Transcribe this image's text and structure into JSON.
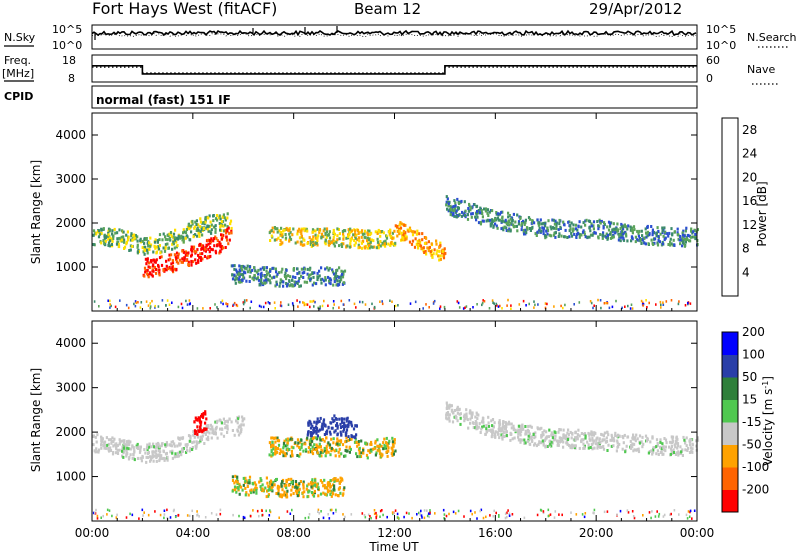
{
  "header": {
    "station": "Fort Hays West (fitACF)",
    "beam": "Beam 12",
    "date": "29/Apr/2012"
  },
  "small_panels": {
    "noise_left_label": "N.Sky",
    "noise_right_label": "N.Search",
    "noise_ticks_left": [
      "10^5",
      "10^0"
    ],
    "noise_ticks_right": [
      "10^5",
      "10^0"
    ],
    "freq_label": "Freq.",
    "freq_unit": "[MHz]",
    "freq_ticks": [
      "18",
      "8"
    ],
    "nave_label": "Nave",
    "nave_ticks": [
      "60",
      "0"
    ],
    "cpid_label": "CPID",
    "cpid_text": "normal (fast) 151 IF"
  },
  "colors": {
    "power_scale": [
      "#0000ff",
      "#2b4fd0",
      "#3b8a6a",
      "#5aa35a",
      "#ffe000",
      "#ffa200",
      "#ff6400",
      "#ff0000"
    ],
    "velocity_scale": [
      "#ff0000",
      "#ff6400",
      "#ffa200",
      "#c8c8c8",
      "#c8c8c8",
      "#50c850",
      "#2f7f3a",
      "#2a3fa8",
      "#0000ff"
    ]
  },
  "chart_data": [
    {
      "type": "line",
      "name": "noise",
      "series": [
        {
          "name": "N.Sky",
          "style": "solid"
        },
        {
          "name": "N.Search",
          "style": "dotted"
        }
      ],
      "ylog": true,
      "ylim_label": [
        "10^0",
        "10^5"
      ]
    },
    {
      "type": "line",
      "name": "frequency_nave",
      "xlim": [
        0,
        24
      ],
      "series": [
        {
          "name": "Freq.",
          "style": "solid",
          "x": [
            0,
            2,
            2,
            14,
            14,
            24
          ],
          "y": [
            14,
            14,
            11,
            11,
            14,
            14
          ]
        },
        {
          "name": "Nave",
          "style": "dotted",
          "x": [
            0,
            2,
            2,
            14,
            14,
            24
          ],
          "y": [
            33,
            33,
            20,
            20,
            33,
            33
          ]
        }
      ],
      "freq_ylim": [
        8,
        18
      ],
      "nave_ylim": [
        0,
        60
      ]
    },
    {
      "type": "heatmap",
      "name": "power",
      "xlabel": "",
      "ylabel": "Slant Range [km]",
      "xlim": [
        0,
        24
      ],
      "ylim": [
        0,
        4500
      ],
      "yticks": [
        1000,
        2000,
        3000,
        4000
      ],
      "colorbar": {
        "label": "Power [dB]",
        "ticks": [
          4,
          8,
          12,
          16,
          20,
          24,
          28
        ],
        "range": [
          0,
          30
        ]
      },
      "features": [
        {
          "desc": "E/F-region band",
          "x": [
            0,
            1,
            2,
            3,
            4,
            5,
            5.5
          ],
          "y": [
            1750,
            1700,
            1500,
            1600,
            1900,
            2050,
            2050
          ],
          "power": 14
        },
        {
          "desc": "strong near-range echo",
          "x": [
            2,
            3,
            4,
            5,
            5.5
          ],
          "y": [
            1000,
            1100,
            1300,
            1550,
            1800
          ],
          "power": 28
        },
        {
          "desc": "midday patch",
          "x": [
            7,
            8,
            9,
            10,
            11,
            12
          ],
          "y": [
            1750,
            1700,
            1700,
            1700,
            1650,
            1700
          ],
          "power": 18
        },
        {
          "desc": "descending trace",
          "x": [
            12,
            12.5,
            13,
            13.5,
            14
          ],
          "y": [
            1900,
            1750,
            1600,
            1450,
            1300
          ],
          "power": 22
        },
        {
          "desc": "evening trail",
          "x": [
            14,
            16,
            18,
            20,
            22,
            24
          ],
          "y": [
            2450,
            2100,
            1900,
            1900,
            1750,
            1700
          ],
          "power": 10
        },
        {
          "desc": "low band",
          "x": [
            5.5,
            6.5,
            7.5,
            8.5,
            10
          ],
          "y": [
            880,
            830,
            800,
            800,
            830
          ],
          "power": 8
        }
      ]
    },
    {
      "type": "heatmap",
      "name": "velocity",
      "xlabel": "Time UT",
      "ylabel": "Slant Range [km]",
      "xlim": [
        0,
        24
      ],
      "ylim": [
        0,
        4500
      ],
      "xticks": [
        "00:00",
        "04:00",
        "08:00",
        "12:00",
        "16:00",
        "20:00",
        "00:00"
      ],
      "yticks": [
        1000,
        2000,
        3000,
        4000
      ],
      "colorbar": {
        "label": "Velocity [m s^-1]",
        "ticks": [
          -200,
          -100,
          -50,
          -15,
          15,
          50,
          100,
          200
        ]
      },
      "features": [
        {
          "desc": "ground scatter band",
          "x": [
            0,
            1,
            2,
            3,
            4,
            5,
            6
          ],
          "y": [
            1800,
            1700,
            1550,
            1600,
            1850,
            2100,
            2200
          ],
          "velocity": 0
        },
        {
          "desc": "red patch",
          "x": [
            4,
            4.5
          ],
          "y": [
            2150,
            2300
          ],
          "velocity": -200
        },
        {
          "desc": "midday mixed patch",
          "x": [
            7,
            8,
            9,
            10,
            11,
            12
          ],
          "y": [
            1700,
            1700,
            1700,
            1700,
            1650,
            1700
          ],
          "velocity": -50
        },
        {
          "desc": "blue upper patch",
          "x": [
            8.5,
            9.5,
            10.5
          ],
          "y": [
            2100,
            2200,
            2100
          ],
          "velocity": 150
        },
        {
          "desc": "evening grey trail",
          "x": [
            14,
            16,
            18,
            20,
            22,
            24
          ],
          "y": [
            2500,
            2100,
            1900,
            1850,
            1750,
            1700
          ],
          "velocity": 0
        },
        {
          "desc": "orange low band",
          "x": [
            5.5,
            6.5,
            7.5,
            8.5,
            10
          ],
          "y": [
            850,
            800,
            780,
            780,
            800
          ],
          "velocity": -50
        }
      ]
    }
  ]
}
